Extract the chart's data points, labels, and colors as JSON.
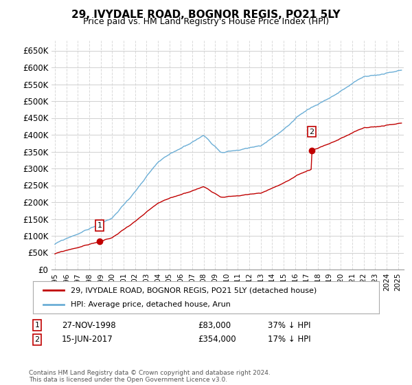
{
  "title": "29, IVYDALE ROAD, BOGNOR REGIS, PO21 5LY",
  "subtitle": "Price paid vs. HM Land Registry's House Price Index (HPI)",
  "ylabel_ticks": [
    "£0",
    "£50K",
    "£100K",
    "£150K",
    "£200K",
    "£250K",
    "£300K",
    "£350K",
    "£400K",
    "£450K",
    "£500K",
    "£550K",
    "£600K",
    "£650K"
  ],
  "ytick_values": [
    0,
    50000,
    100000,
    150000,
    200000,
    250000,
    300000,
    350000,
    400000,
    450000,
    500000,
    550000,
    600000,
    650000
  ],
  "ylim": [
    0,
    680000
  ],
  "xlim_start": 1994.7,
  "xlim_end": 2025.5,
  "hpi_color": "#6baed6",
  "price_color": "#c00000",
  "marker_color": "#c00000",
  "grid_color": "#d0d0d0",
  "background_color": "#ffffff",
  "transaction1_year": 1998.9,
  "transaction1_value": 83000,
  "transaction2_year": 2017.45,
  "transaction2_value": 354000,
  "legend_line1": "29, IVYDALE ROAD, BOGNOR REGIS, PO21 5LY (detached house)",
  "legend_line2": "HPI: Average price, detached house, Arun",
  "footnote": "Contains HM Land Registry data © Crown copyright and database right 2024.\nThis data is licensed under the Open Government Licence v3.0.",
  "table_row1": [
    "1",
    "27-NOV-1998",
    "£83,000",
    "37% ↓ HPI"
  ],
  "table_row2": [
    "2",
    "15-JUN-2017",
    "£354,000",
    "17% ↓ HPI"
  ]
}
